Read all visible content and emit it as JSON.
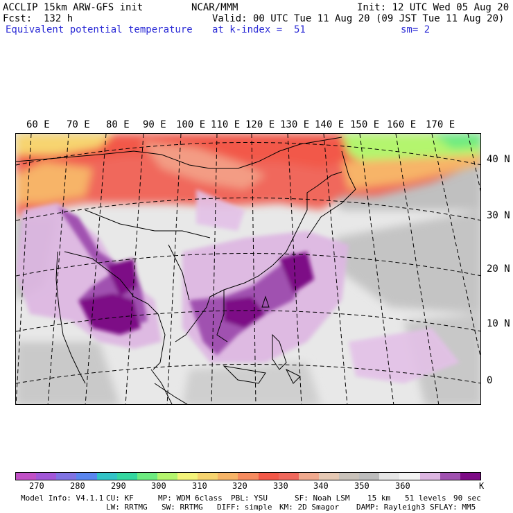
{
  "header": {
    "left_line1": "ACCLIP 15km ARW-GFS init",
    "center_line1": "NCAR/MMM",
    "right_line1": "Init: 12 UTC Wed 05 Aug 20",
    "left_line2": "Fcst:  132 h",
    "right_line2": "Valid: 00 UTC Tue 11 Aug 20 (09 JST Tue 11 Aug 20)",
    "field_name": "Equivalent potential temperature",
    "level": "at k-index =  51",
    "smoothing": "sm= 2"
  },
  "map": {
    "lon_labels": [
      "60 E",
      "70 E",
      "80 E",
      "90 E",
      "100 E",
      "110 E",
      "120 E",
      "130 E",
      "140 E",
      "150 E",
      "160 E",
      "170 E"
    ],
    "lat_labels": [
      "40 N",
      "30 N",
      "20 N",
      "10 N",
      "0"
    ]
  },
  "colorbar": {
    "colors": [
      "#c150c6",
      "#a257d8",
      "#8073e3",
      "#5a86ef",
      "#32c3c7",
      "#34d7a0",
      "#6deb80",
      "#b4f56e",
      "#f4f47a",
      "#f7d46f",
      "#f7b467",
      "#f68b5f",
      "#f25848",
      "#f0685c",
      "#f0a98e",
      "#e6c9b4",
      "#c9c2ba",
      "#bdbdbd",
      "#e6e6e6",
      "#f4f4f4",
      "#ddb6e2",
      "#a051b0",
      "#7d0b86"
    ],
    "labels": [
      "270",
      "280",
      "290",
      "300",
      "310",
      "320",
      "330",
      "340",
      "350",
      "360",
      "K"
    ]
  },
  "footer": {
    "line1_items": [
      "Model Info: V4.1.1",
      "CU: KF",
      "MP: WDM 6class",
      "PBL: YSU",
      "SF: Noah LSM",
      "15 km",
      "51 levels",
      "90 sec"
    ],
    "line2_items": [
      "LW: RRTMG",
      "SW: RRTMG",
      "DIFF: simple",
      "KM: 2D Smagor",
      "DAMP: Rayleigh3",
      "SFLAY: MM5"
    ]
  }
}
